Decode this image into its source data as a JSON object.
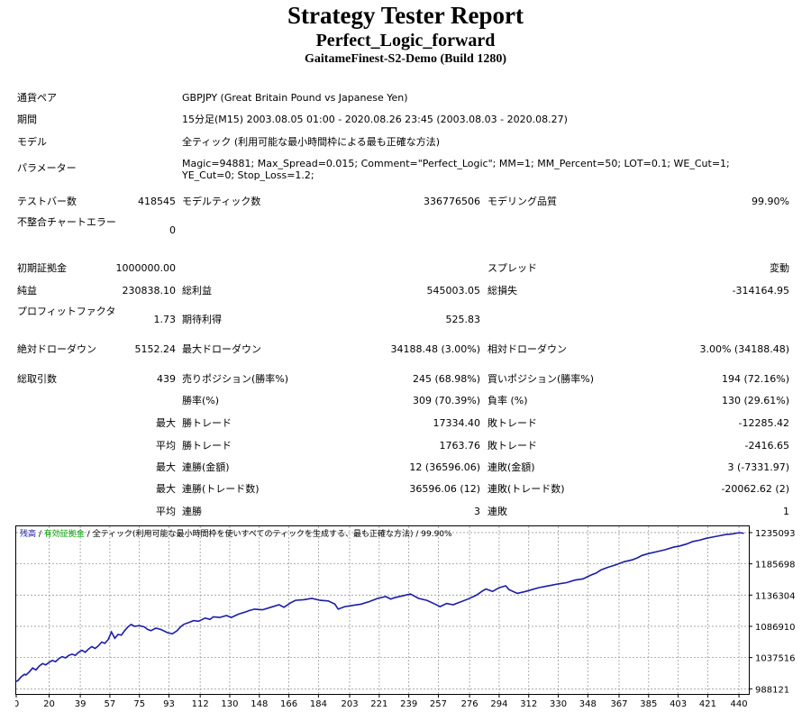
{
  "header": {
    "title": "Strategy Tester Report",
    "expert": "Perfect_Logic_forward",
    "server": "GaitameFinest-S2-Demo (Build 1280)"
  },
  "info": {
    "symbol_label": "通貨ペア",
    "symbol_value": "GBPJPY (Great Britain Pound vs Japanese Yen)",
    "period_label": "期間",
    "period_value": "15分足(M15) 2003.08.05 01:00 - 2020.08.26 23:45 (2003.08.03 - 2020.08.27)",
    "model_label": "モデル",
    "model_value": "全ティック (利用可能な最小時間枠による最も正確な方法)",
    "params_label": "パラメーター",
    "params_value": "Magic=94881; Max_Spread=0.015; Comment=\"Perfect_Logic\"; MM=1; MM_Percent=50; LOT=0.1; WE_Cut=1; YE_Cut=0; Stop_Loss=1.2;"
  },
  "bars": {
    "bars_label": "テストバー数",
    "bars_value": "418545",
    "ticks_label": "モデルティック数",
    "ticks_value": "336776506",
    "quality_label": "モデリング品質",
    "quality_value": "99.90%",
    "errors_label": "不整合チャートエラー",
    "errors_value": "0"
  },
  "stats": {
    "deposit_label": "初期証拠金",
    "deposit_value": "1000000.00",
    "spread_label": "スプレッド",
    "spread_value": "変動",
    "net_label": "純益",
    "net_value": "230838.10",
    "gross_profit_label": "総利益",
    "gross_profit_value": "545003.05",
    "gross_loss_label": "総損失",
    "gross_loss_value": "-314164.95",
    "pf_label": "プロフィットファクタ",
    "pf_value": "1.73",
    "expected_label": "期待利得",
    "expected_value": "525.83",
    "abs_dd_label": "絶対ドローダウン",
    "abs_dd_value": "5152.24",
    "max_dd_label": "最大ドローダウン",
    "max_dd_value": "34188.48 (3.00%)",
    "rel_dd_label": "相対ドローダウン",
    "rel_dd_value": "3.00% (34188.48)",
    "total_label": "総取引数",
    "total_value": "439",
    "short_label": "売りポジション(勝率%)",
    "short_value": "245 (68.98%)",
    "long_label": "買いポジション(勝率%)",
    "long_value": "194 (72.16%)",
    "win_label": "勝率(%)",
    "win_value": "309 (70.39%)",
    "loss_label": "負率 (%)",
    "loss_value": "130 (29.61%)",
    "max1": "最大",
    "largest_win_label": "勝トレード",
    "largest_win_value": "17334.40",
    "largest_loss_label": "敗トレード",
    "largest_loss_value": "-12285.42",
    "avg1": "平均",
    "avg_win_label": "勝トレード",
    "avg_win_value": "1763.76",
    "avg_loss_label": "敗トレード",
    "avg_loss_value": "-2416.65",
    "max2": "最大",
    "cons_win_amt_label": "連勝(金額)",
    "cons_win_amt_value": "12 (36596.06)",
    "cons_loss_amt_label": "連敗(金額)",
    "cons_loss_amt_value": "3 (-7331.97)",
    "max3": "最大",
    "cons_win_cnt_label": "連勝(トレード数)",
    "cons_win_cnt_value": "36596.06 (12)",
    "cons_loss_cnt_label": "連敗(トレード数)",
    "cons_loss_cnt_value": "-20062.62 (2)",
    "avg2": "平均",
    "avg_cons_win_label": "連勝",
    "avg_cons_win_value": "3",
    "avg_cons_loss_label": "連敗",
    "avg_cons_loss_value": "1"
  },
  "chart_data": {
    "type": "line",
    "legend": {
      "balance": "残高",
      "sep1": " / ",
      "equity": "有効証拠金",
      "sep2": " / ",
      "model": "全ティック(利用可能な最小時間枠を使いすべてのティックを生成する、最も正確な方法)",
      "sep3": " / ",
      "quality": "99.90%"
    },
    "x_ticks": [
      0,
      20,
      39,
      57,
      75,
      93,
      112,
      130,
      148,
      166,
      184,
      203,
      221,
      239,
      257,
      276,
      294,
      312,
      330,
      348,
      367,
      385,
      403,
      421,
      440
    ],
    "y_ticks": [
      988121,
      1037516,
      1086910,
      1136304,
      1185698,
      1235093
    ],
    "xlim": [
      0,
      446
    ],
    "ylim": [
      980000,
      1245000
    ],
    "colors": {
      "balance": "#1c1ca8",
      "grid": "#9a9a9a",
      "equity": "#00a000"
    },
    "series": [
      {
        "x": [
          0,
          1,
          2,
          3,
          5,
          6,
          8,
          9,
          10,
          12,
          14,
          16,
          18,
          20,
          22,
          24,
          26,
          28,
          30,
          32,
          34,
          36,
          38,
          40,
          42,
          44,
          46,
          48,
          50,
          52,
          54,
          56,
          58,
          60,
          62,
          64,
          66,
          68,
          70,
          72,
          75,
          78,
          80,
          82,
          85,
          88,
          92,
          95,
          98,
          100,
          102,
          105,
          108,
          111,
          115,
          118,
          120,
          124,
          128,
          131,
          135,
          140,
          142,
          145,
          150,
          155,
          160,
          163,
          167,
          170,
          175,
          180,
          185,
          190,
          194,
          196,
          200,
          205,
          210,
          215,
          220,
          225,
          228,
          230,
          235,
          240,
          245,
          250,
          255,
          258,
          262,
          266,
          270,
          275,
          280,
          284,
          286,
          290,
          294,
          298,
          300,
          305,
          310,
          314,
          318,
          322,
          326,
          330,
          335,
          340,
          345,
          350,
          353,
          356,
          360,
          365,
          370,
          375,
          378,
          381,
          385,
          390,
          395,
          400,
          404,
          408,
          412,
          416,
          420,
          424,
          428,
          432,
          436,
          440,
          443
        ],
        "y": [
          1000000,
          1001000,
          1004000,
          1007000,
          1011000,
          1010000,
          1015000,
          1018000,
          1021000,
          1018000,
          1024000,
          1028000,
          1026000,
          1030000,
          1033000,
          1031000,
          1036000,
          1039000,
          1037000,
          1041000,
          1043000,
          1041000,
          1046000,
          1049000,
          1046000,
          1051000,
          1055000,
          1052000,
          1056000,
          1062000,
          1060000,
          1066000,
          1078000,
          1068000,
          1074000,
          1073000,
          1080000,
          1086000,
          1090000,
          1087000,
          1088000,
          1086000,
          1082000,
          1080000,
          1084000,
          1082000,
          1077000,
          1075000,
          1080000,
          1086000,
          1090000,
          1093000,
          1096000,
          1095000,
          1100000,
          1098000,
          1102000,
          1101000,
          1104000,
          1101000,
          1106000,
          1110000,
          1112000,
          1114000,
          1113000,
          1117000,
          1121000,
          1117000,
          1124000,
          1128000,
          1129000,
          1131000,
          1128000,
          1127000,
          1122000,
          1114000,
          1118000,
          1120000,
          1122000,
          1126000,
          1131000,
          1134000,
          1130000,
          1132000,
          1135000,
          1138000,
          1131000,
          1128000,
          1122000,
          1118000,
          1123000,
          1121000,
          1125000,
          1130000,
          1136000,
          1143000,
          1146000,
          1142000,
          1148000,
          1151000,
          1145000,
          1139000,
          1142000,
          1145000,
          1148000,
          1150000,
          1152000,
          1154000,
          1156000,
          1160000,
          1162000,
          1168000,
          1171000,
          1176000,
          1180000,
          1184000,
          1189000,
          1192000,
          1195000,
          1199000,
          1202000,
          1205000,
          1208000,
          1212000,
          1214000,
          1217000,
          1221000,
          1223000,
          1226000,
          1228000,
          1230000,
          1232000,
          1233000,
          1235000,
          1234000
        ]
      }
    ]
  }
}
